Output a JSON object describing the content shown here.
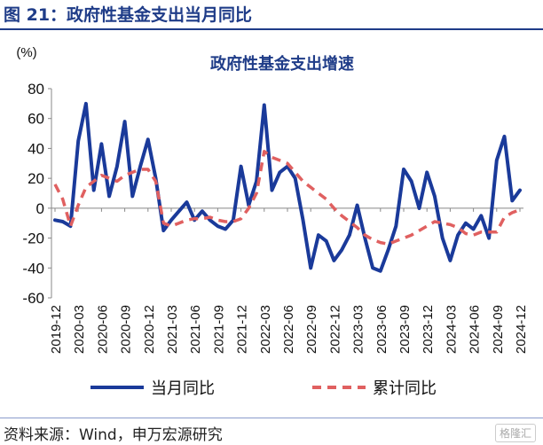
{
  "figure_title": "图 21：政府性基金支出当月同比",
  "source": "资料来源：Wind，申万宏源研究",
  "watermark": "格隆汇",
  "colors": {
    "series_monthly": "#1a3a9a",
    "series_cumulative": "#e06060",
    "title": "#1f3c88"
  },
  "chart_data": {
    "type": "line",
    "title": "政府性基金支出增速",
    "ylabel": "(%)",
    "xlabel": "",
    "ylim": [
      -60,
      80
    ],
    "yticks": [
      80,
      60,
      40,
      20,
      0,
      -20,
      -40,
      -60
    ],
    "xtick_labels": [
      "2019-12",
      "2020-03",
      "2020-06",
      "2020-09",
      "2020-12",
      "2021-03",
      "2021-06",
      "2021-09",
      "2021-12",
      "2022-03",
      "2022-06",
      "2022-09",
      "2022-12",
      "2023-03",
      "2023-06",
      "2023-09",
      "2023-12",
      "2024-03",
      "2024-06",
      "2024-09",
      "2024-12"
    ],
    "x": [
      "2019-12",
      "2020-01",
      "2020-02",
      "2020-03",
      "2020-04",
      "2020-05",
      "2020-06",
      "2020-07",
      "2020-08",
      "2020-09",
      "2020-10",
      "2020-11",
      "2020-12",
      "2021-01",
      "2021-02",
      "2021-03",
      "2021-04",
      "2021-05",
      "2021-06",
      "2021-07",
      "2021-08",
      "2021-09",
      "2021-10",
      "2021-11",
      "2021-12",
      "2022-01",
      "2022-02",
      "2022-03",
      "2022-04",
      "2022-05",
      "2022-06",
      "2022-07",
      "2022-08",
      "2022-09",
      "2022-10",
      "2022-11",
      "2022-12",
      "2023-01",
      "2023-02",
      "2023-03",
      "2023-04",
      "2023-05",
      "2023-06",
      "2023-07",
      "2023-08",
      "2023-09",
      "2023-10",
      "2023-11",
      "2023-12",
      "2024-01",
      "2024-02",
      "2024-03",
      "2024-04",
      "2024-05",
      "2024-06",
      "2024-07",
      "2024-08",
      "2024-09",
      "2024-10",
      "2024-11",
      "2024-12"
    ],
    "series": [
      {
        "name": "当月同比",
        "style": "solid",
        "values": [
          -8,
          -9,
          -12,
          45,
          70,
          12,
          43,
          8,
          28,
          58,
          8,
          28,
          46,
          20,
          -15,
          -8,
          -2,
          4,
          -8,
          -2,
          -8,
          -12,
          -14,
          -8,
          28,
          2,
          18,
          69,
          12,
          24,
          28,
          20,
          -8,
          -40,
          -18,
          -22,
          -35,
          -28,
          -18,
          2,
          -20,
          -40,
          -42,
          -28,
          -12,
          26,
          18,
          0,
          24,
          8,
          -20,
          -35,
          -18,
          -10,
          -14,
          -5,
          -20,
          32,
          48,
          5,
          12
        ]
      },
      {
        "name": "累计同比",
        "style": "dashed",
        "values": [
          16,
          6,
          -12,
          2,
          14,
          18,
          22,
          20,
          18,
          22,
          24,
          26,
          26,
          18,
          -10,
          -12,
          -10,
          -8,
          -7,
          -7,
          -6,
          -8,
          -9,
          -9,
          -7,
          0,
          10,
          38,
          34,
          32,
          30,
          24,
          18,
          14,
          10,
          6,
          0,
          -5,
          -9,
          -13,
          -18,
          -21,
          -23,
          -24,
          -22,
          -20,
          -18,
          -15,
          -12,
          -9,
          -10,
          -11,
          -13,
          -17,
          -18,
          -16,
          -16,
          -16,
          -6,
          -3,
          -1
        ]
      }
    ]
  }
}
